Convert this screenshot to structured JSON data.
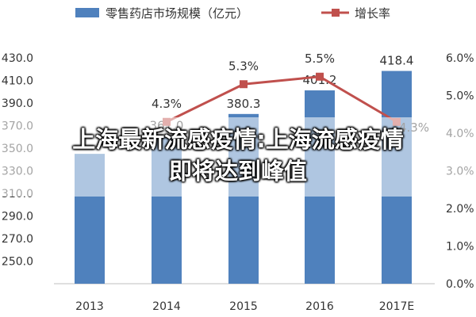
{
  "chart_data": {
    "type": "bar",
    "categories": [
      "2013",
      "2014",
      "2015",
      "2016",
      "2017E"
    ],
    "series": [
      {
        "name": "零售药店市场规模（亿元）",
        "type": "bar",
        "axis": "left",
        "values": [
          345.0,
          361.0,
          380.3,
          401.2,
          418.4
        ],
        "color": "#4f81bd",
        "data_labels": [
          "",
          "361.0",
          "380.3",
          "401.2",
          "418.4"
        ]
      },
      {
        "name": "增长率",
        "type": "line",
        "axis": "right",
        "values": [
          null,
          4.3,
          5.3,
          5.5,
          4.3
        ],
        "color": "#c0504d",
        "data_labels": [
          "",
          "4.3%",
          "5.3%",
          "5.5%",
          "4.3%"
        ]
      }
    ],
    "y_left": {
      "min": 270.0,
      "max": 430.0,
      "ticks": [
        "430.0",
        "410.0",
        "390.0",
        "370.0",
        "350.0",
        "330.0",
        "310.0",
        "290.0",
        "270.0",
        "250.0"
      ]
    },
    "y_right": {
      "min": 0.0,
      "max": 6.0,
      "ticks": [
        "6.0%",
        "5.0%",
        "4.0%",
        "3.0%",
        "2.0%",
        "1.0%",
        "0.0%"
      ]
    },
    "legend": "top"
  },
  "headline": {
    "line1": "上海最新流感疫情:上海流感疫情",
    "line2": "即将达到峰值"
  }
}
